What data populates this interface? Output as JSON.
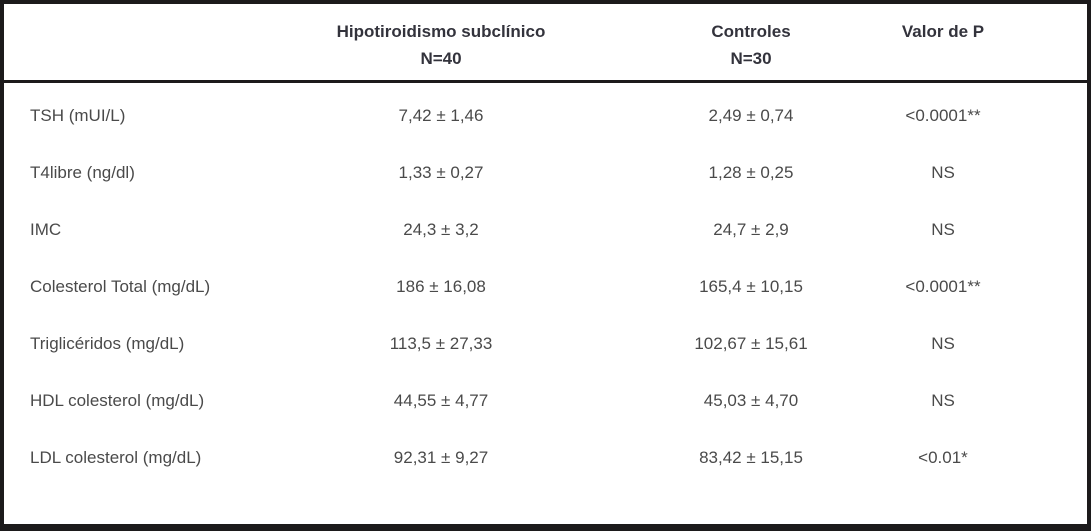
{
  "table": {
    "header": {
      "group1_title": "Hipotiroidismo subclínico",
      "group1_n": "N=40",
      "group2_title": "Controles",
      "group2_n": "N=30",
      "p_title": "Valor de P"
    },
    "rows": [
      {
        "label": "TSH (mUI/L)",
        "group1": "7,42 ± 1,46",
        "group2": "2,49 ± 0,74",
        "p": "<0.0001**"
      },
      {
        "label": "T4libre (ng/dl)",
        "group1": "1,33 ± 0,27",
        "group2": "1,28 ± 0,25",
        "p": "NS"
      },
      {
        "label": "IMC",
        "group1": "24,3 ± 3,2",
        "group2": "24,7 ± 2,9",
        "p": "NS"
      },
      {
        "label": "Colesterol Total (mg/dL)",
        "group1": "186 ± 16,08",
        "group2": "165,4 ± 10,15",
        "p": "<0.0001**"
      },
      {
        "label": "Triglicéridos (mg/dL)",
        "group1": "113,5 ± 27,33",
        "group2": "102,67 ± 15,61",
        "p": "NS"
      },
      {
        "label": "HDL colesterol (mg/dL)",
        "group1": "44,55 ± 4,77",
        "group2": "45,03 ± 4,70",
        "p": "NS"
      },
      {
        "label": "LDL colesterol (mg/dL)",
        "group1": "92,31 ± 9,27",
        "group2": "83,42 ± 15,15",
        "p": "<0.01*"
      }
    ],
    "colors": {
      "border": "#1c1a1b",
      "header_text": "#33333c",
      "body_text": "#4a4a4a",
      "background": "#ffffff"
    }
  }
}
